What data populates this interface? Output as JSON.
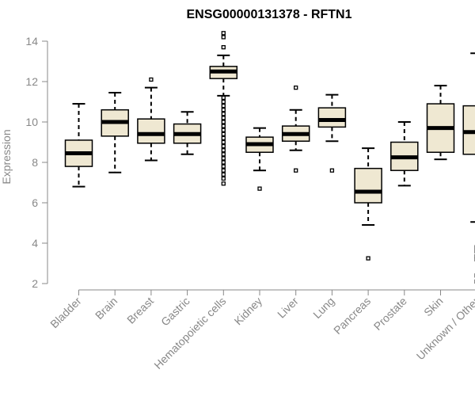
{
  "chart_data": {
    "type": "box",
    "title": "ENSG00000131378 - RFTN1",
    "xlabel": "",
    "ylabel": "Expression",
    "ylim": [
      1.9,
      14.2
    ],
    "yticks": [
      2,
      4,
      6,
      8,
      10,
      12,
      14
    ],
    "grid": false,
    "legend": "none",
    "colors": {
      "box_fill": "#efe8d2",
      "median": "#000000",
      "whisker": "#000000",
      "outlier": "#000000",
      "axis": "#888888"
    },
    "categories": [
      "Bladder",
      "Brain",
      "Breast",
      "Gastric",
      "Hematopoietic cells",
      "Kidney",
      "Liver",
      "Lung",
      "Pancreas",
      "Prostate",
      "Skin",
      "Unknown / Other"
    ],
    "boxes": [
      {
        "category": "Bladder",
        "min": 6.8,
        "q1": 7.8,
        "median": 8.45,
        "q3": 9.1,
        "max": 10.9,
        "outliers": []
      },
      {
        "category": "Brain",
        "min": 7.5,
        "q1": 9.3,
        "median": 10.0,
        "q3": 10.6,
        "max": 11.45,
        "outliers": []
      },
      {
        "category": "Breast",
        "min": 8.1,
        "q1": 8.95,
        "median": 9.4,
        "q3": 10.15,
        "max": 11.7,
        "outliers": [
          12.1
        ]
      },
      {
        "category": "Gastric",
        "min": 8.4,
        "q1": 8.95,
        "median": 9.4,
        "q3": 9.9,
        "max": 10.5,
        "outliers": []
      },
      {
        "category": "Hematopoietic cells",
        "min": 11.3,
        "q1": 12.15,
        "median": 12.5,
        "q3": 12.75,
        "max": 13.3,
        "outliers": [
          13.7,
          14.2,
          14.4,
          11.2,
          11.0,
          10.8,
          10.6,
          10.4,
          10.2,
          10.0,
          9.8,
          9.6,
          9.4,
          9.2,
          9.0,
          8.8,
          8.6,
          8.4,
          8.2,
          8.0,
          7.8,
          7.6,
          7.4,
          7.2,
          6.95
        ]
      },
      {
        "category": "Kidney",
        "min": 7.6,
        "q1": 8.5,
        "median": 8.9,
        "q3": 9.25,
        "max": 9.7,
        "outliers": [
          6.7
        ]
      },
      {
        "category": "Liver",
        "min": 8.6,
        "q1": 9.05,
        "median": 9.4,
        "q3": 9.8,
        "max": 10.6,
        "outliers": [
          11.7,
          7.6
        ]
      },
      {
        "category": "Lung",
        "min": 9.05,
        "q1": 9.75,
        "median": 10.1,
        "q3": 10.7,
        "max": 11.35,
        "outliers": [
          7.6
        ]
      },
      {
        "category": "Pancreas",
        "min": 4.9,
        "q1": 6.0,
        "median": 6.55,
        "q3": 7.7,
        "max": 8.7,
        "outliers": [
          3.25
        ]
      },
      {
        "category": "Prostate",
        "min": 6.85,
        "q1": 7.6,
        "median": 8.25,
        "q3": 9.0,
        "max": 10.0,
        "outliers": []
      },
      {
        "category": "Skin",
        "min": 8.15,
        "q1": 8.5,
        "median": 9.7,
        "q3": 10.9,
        "max": 11.8,
        "outliers": []
      },
      {
        "category": "Unknown / Other",
        "min": 5.05,
        "q1": 8.4,
        "median": 9.5,
        "q3": 10.8,
        "max": 13.4,
        "outliers": [
          3.8,
          3.6,
          3.35,
          3.2,
          2.4,
          2.1
        ]
      }
    ]
  }
}
